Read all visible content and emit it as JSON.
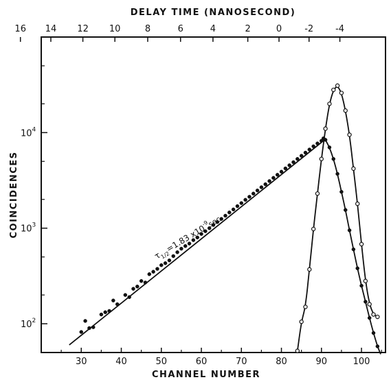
{
  "chart_data": {
    "type": "scatter",
    "title": "",
    "xlabel": "CHANNEL NUMBER",
    "ylabel": "COINCIDENCES",
    "x2label": "DELAY TIME (NANOSECOND)",
    "xlim": [
      20,
      106
    ],
    "ylim": [
      50,
      100000
    ],
    "yscale": "log",
    "grid": false,
    "x_ticks": [
      30,
      40,
      50,
      60,
      70,
      80,
      90,
      100
    ],
    "x_tick_labels": [
      "30",
      "40",
      "50",
      "60",
      "70",
      "80",
      "90",
      "100"
    ],
    "x2_ticks": [
      16,
      14,
      12,
      10,
      8,
      6,
      4,
      2,
      0,
      -2,
      -4
    ],
    "x2_tick_labels": [
      "16",
      "14",
      "12",
      "10",
      "8",
      "6",
      "4",
      "2",
      "0",
      "-2",
      "-4"
    ],
    "x2_channels": [
      14.8,
      22.4,
      30.4,
      38.4,
      46.6,
      54.8,
      62.9,
      71.6,
      79.4,
      86.9,
      94.6
    ],
    "y_ticks": [
      100,
      1000,
      10000
    ],
    "y_tick_base": "10",
    "y_tick_exponents": [
      "2",
      "3",
      "4"
    ],
    "annotation": {
      "tau": "τ",
      "sub": "1/2",
      "text": "=1.83 x10",
      "exp": "-9",
      "unit": "sec"
    },
    "series": [
      {
        "marker": "filled-circle",
        "points": [
          [
            30,
            82
          ],
          [
            31,
            107
          ],
          [
            32,
            90
          ],
          [
            33,
            92
          ],
          [
            35,
            125
          ],
          [
            36,
            132
          ],
          [
            37,
            136
          ],
          [
            38,
            175
          ],
          [
            39,
            160
          ],
          [
            41,
            200
          ],
          [
            42,
            190
          ],
          [
            43,
            232
          ],
          [
            44,
            245
          ],
          [
            45,
            280
          ],
          [
            46,
            270
          ],
          [
            47,
            330
          ],
          [
            48,
            350
          ],
          [
            49,
            375
          ],
          [
            50,
            410
          ],
          [
            51,
            430
          ],
          [
            52,
            460
          ],
          [
            53,
            510
          ],
          [
            54,
            560
          ],
          [
            55,
            610
          ],
          [
            56,
            650
          ],
          [
            57,
            690
          ],
          [
            58,
            750
          ],
          [
            59,
            800
          ],
          [
            60,
            870
          ],
          [
            61,
            930
          ],
          [
            62,
            1000
          ],
          [
            63,
            1080
          ],
          [
            64,
            1160
          ],
          [
            65,
            1250
          ],
          [
            66,
            1350
          ],
          [
            67,
            1460
          ],
          [
            68,
            1570
          ],
          [
            69,
            1700
          ],
          [
            70,
            1830
          ],
          [
            71,
            1980
          ],
          [
            72,
            2130
          ],
          [
            73,
            2300
          ],
          [
            74,
            2480
          ],
          [
            75,
            2680
          ],
          [
            76,
            2880
          ],
          [
            77,
            3110
          ],
          [
            78,
            3360
          ],
          [
            79,
            3620
          ],
          [
            80,
            3900
          ],
          [
            81,
            4220
          ],
          [
            82,
            4550
          ],
          [
            83,
            4900
          ],
          [
            84,
            5300
          ],
          [
            85,
            5720
          ],
          [
            86,
            6170
          ],
          [
            87,
            6650
          ],
          [
            88,
            7180
          ],
          [
            89,
            7700
          ],
          [
            90,
            8200
          ],
          [
            90.5,
            8700
          ],
          [
            91,
            8400
          ],
          [
            92,
            7000
          ],
          [
            93,
            5300
          ],
          [
            94,
            3700
          ],
          [
            95,
            2400
          ],
          [
            96,
            1550
          ],
          [
            97,
            950
          ],
          [
            98,
            600
          ],
          [
            99,
            380
          ],
          [
            100,
            250
          ],
          [
            101,
            170
          ],
          [
            102,
            115
          ],
          [
            103,
            80
          ],
          [
            104,
            58
          ]
        ]
      },
      {
        "marker": "open-circle",
        "points": [
          [
            84,
            52
          ],
          [
            85,
            105
          ],
          [
            86,
            150
          ],
          [
            87,
            370
          ],
          [
            88,
            980
          ],
          [
            89,
            2300
          ],
          [
            90,
            5300
          ],
          [
            91,
            11000
          ],
          [
            92,
            20000
          ],
          [
            93,
            28000
          ],
          [
            94,
            31000
          ],
          [
            95,
            26000
          ],
          [
            96,
            17000
          ],
          [
            97,
            9500
          ],
          [
            98,
            4200
          ],
          [
            99,
            1800
          ],
          [
            100,
            680
          ],
          [
            101,
            280
          ],
          [
            102,
            160
          ],
          [
            103,
            125
          ],
          [
            104,
            118
          ]
        ]
      }
    ],
    "fit_lines": [
      {
        "description_from_chart": "",
        "points": [
          [
            27,
            60
          ],
          [
            90,
            7900
          ]
        ]
      }
    ],
    "peak_curves": [
      {
        "series": 0,
        "points": [
          [
            90,
            8200
          ],
          [
            90.6,
            8700
          ],
          [
            91,
            8400
          ],
          [
            92,
            7000
          ],
          [
            93,
            5300
          ],
          [
            94,
            3700
          ],
          [
            95,
            2400
          ],
          [
            96,
            1550
          ],
          [
            97,
            950
          ],
          [
            98,
            600
          ],
          [
            99,
            380
          ],
          [
            100,
            250
          ],
          [
            101,
            170
          ],
          [
            102,
            115
          ],
          [
            103,
            80
          ],
          [
            104,
            58
          ],
          [
            104.8,
            48
          ]
        ]
      },
      {
        "series": 1,
        "points": [
          [
            84,
            52
          ],
          [
            85,
            105
          ],
          [
            86,
            150
          ],
          [
            87,
            370
          ],
          [
            88,
            980
          ],
          [
            89,
            2300
          ],
          [
            90,
            5300
          ],
          [
            91,
            11000
          ],
          [
            92,
            20000
          ],
          [
            93,
            28000
          ],
          [
            94,
            31000
          ],
          [
            95,
            26000
          ],
          [
            96,
            17000
          ],
          [
            97,
            9500
          ],
          [
            98,
            4200
          ],
          [
            99,
            1800
          ],
          [
            100,
            680
          ],
          [
            101,
            280
          ],
          [
            102,
            160
          ],
          [
            103,
            125
          ],
          [
            104,
            118
          ]
        ]
      }
    ]
  }
}
